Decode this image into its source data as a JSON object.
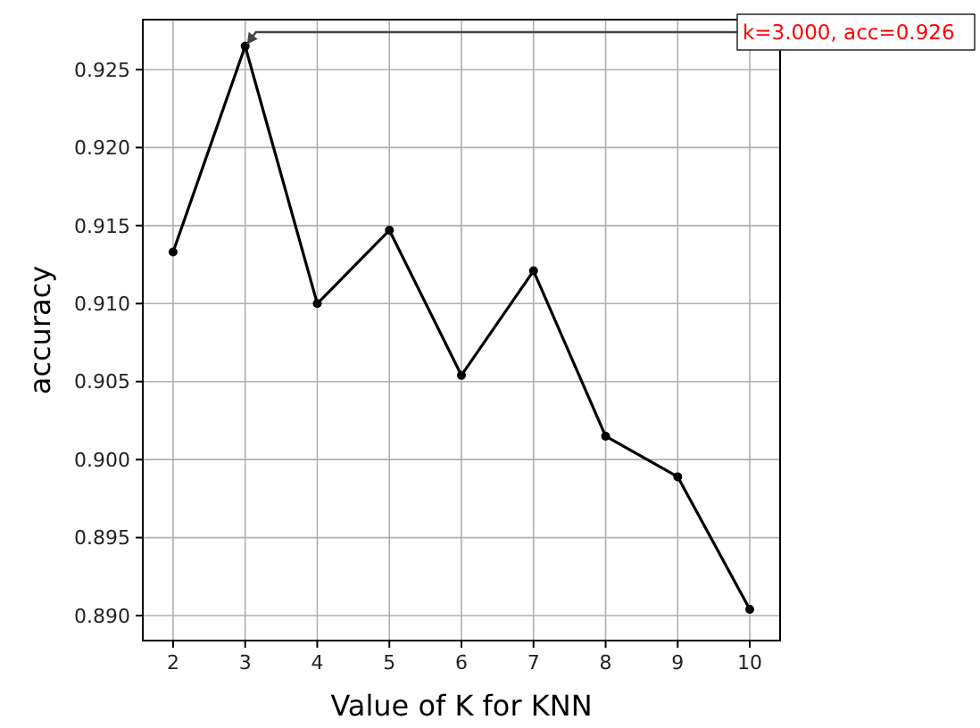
{
  "chart_data": {
    "type": "line",
    "xlabel": "Value of K for KNN",
    "ylabel": "accuracy",
    "x": [
      2,
      3,
      4,
      5,
      6,
      7,
      8,
      9,
      10
    ],
    "series": [
      {
        "color": "#000000",
        "values": [
          0.9133,
          0.9265,
          0.91,
          0.9147,
          0.9054,
          0.9121,
          0.9015,
          0.8989,
          0.8904
        ]
      }
    ],
    "xlim": [
      1.58,
      10.42
    ],
    "xticks": [
      2,
      3,
      4,
      5,
      6,
      7,
      8,
      9,
      10
    ],
    "ylim": [
      0.8884,
      0.9282
    ],
    "yticks": [
      {
        "value": 0.89,
        "label": "0.890"
      },
      {
        "value": 0.895,
        "label": "0.895"
      },
      {
        "value": 0.9,
        "label": "0.900"
      },
      {
        "value": 0.905,
        "label": "0.905"
      },
      {
        "value": 0.91,
        "label": "0.910"
      },
      {
        "value": 0.915,
        "label": "0.915"
      },
      {
        "value": 0.92,
        "label": "0.920"
      },
      {
        "value": 0.925,
        "label": "0.925"
      }
    ],
    "grid": true,
    "marker": "circle",
    "line_style": "solid",
    "annotations": [
      {
        "text": "k=3.000, acc=0.926",
        "x": 3,
        "y": 0.9265
      }
    ]
  }
}
